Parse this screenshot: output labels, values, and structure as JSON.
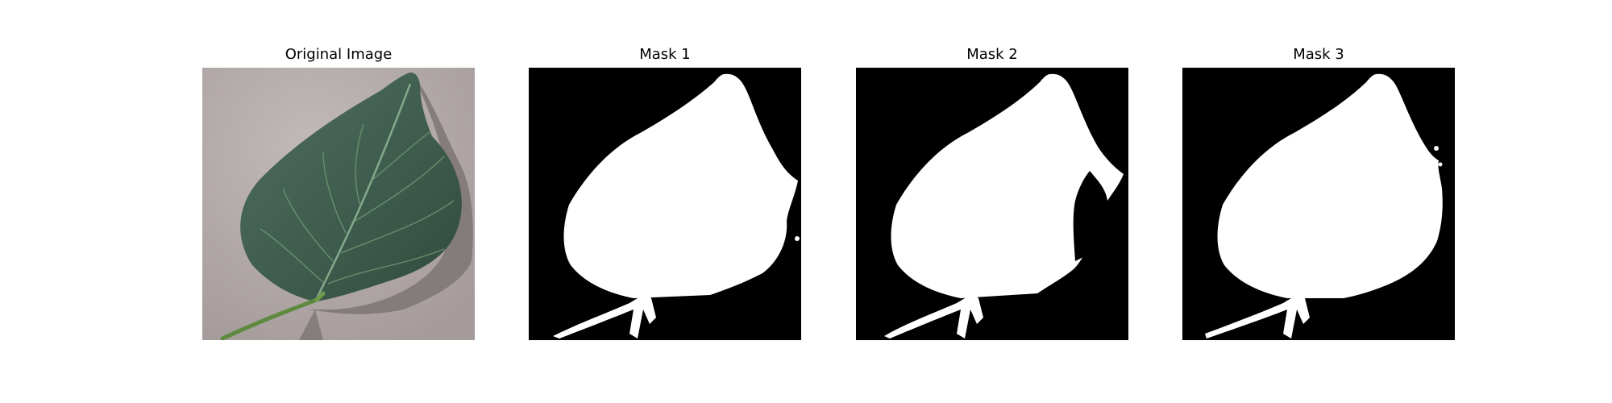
{
  "figure": {
    "background": "#ffffff",
    "panels": [
      {
        "title": "Original Image",
        "kind": "photo"
      },
      {
        "title": "Mask 1",
        "kind": "mask"
      },
      {
        "title": "Mask 2",
        "kind": "mask"
      },
      {
        "title": "Mask 3",
        "kind": "mask"
      }
    ]
  },
  "colors": {
    "mask_background": "#000000",
    "mask_foreground": "#ffffff",
    "leaf": "#3f5c4e",
    "leaf_dark": "#2e4a3d",
    "vein": "#7fa07a",
    "stem": "#5d8a3e",
    "ground": "#b3a9a9",
    "shadow": "#6e6666"
  }
}
